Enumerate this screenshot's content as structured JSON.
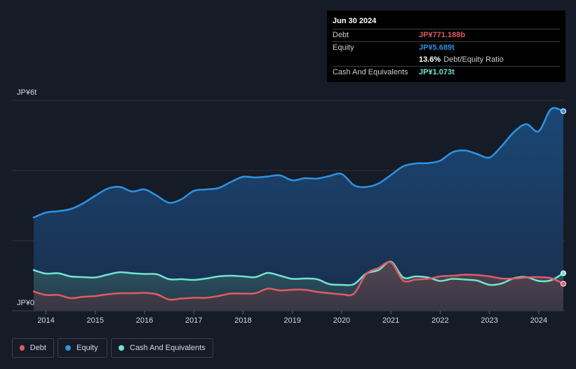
{
  "tooltip": {
    "date": "Jun 30 2024",
    "debt_label": "Debt",
    "debt_value": "JP¥771.188b",
    "equity_label": "Equity",
    "equity_value": "JP¥5.689t",
    "ratio_value": "13.6%",
    "ratio_label": "Debt/Equity Ratio",
    "cash_label": "Cash And Equivalents",
    "cash_value": "JP¥1.073t"
  },
  "legend": {
    "debt": "Debt",
    "equity": "Equity",
    "cash": "Cash And Equivalents"
  },
  "colors": {
    "debt": "#e05b63",
    "equity": "#2e93e0",
    "cash": "#6fe3d0",
    "background": "#151b27"
  },
  "chart_data": {
    "type": "area",
    "unit": "JP¥ trillions",
    "y_tick_labels": [
      "JP¥0",
      "JP¥6t"
    ],
    "ylim": [
      0,
      6
    ],
    "xlim": [
      2013.75,
      2024.5
    ],
    "x_tick_labels": [
      "2014",
      "2015",
      "2016",
      "2017",
      "2018",
      "2019",
      "2020",
      "2021",
      "2022",
      "2023",
      "2024"
    ],
    "grid": true,
    "legend_position": "bottom-left",
    "series": [
      {
        "name": "Equity",
        "x": [
          2013.75,
          2014.0,
          2014.25,
          2014.5,
          2014.75,
          2015.0,
          2015.25,
          2015.5,
          2015.75,
          2016.0,
          2016.25,
          2016.5,
          2016.75,
          2017.0,
          2017.25,
          2017.5,
          2017.75,
          2018.0,
          2018.25,
          2018.5,
          2018.75,
          2019.0,
          2019.25,
          2019.5,
          2019.75,
          2020.0,
          2020.25,
          2020.5,
          2020.75,
          2021.0,
          2021.25,
          2021.5,
          2021.75,
          2022.0,
          2022.25,
          2022.5,
          2022.75,
          2023.0,
          2023.25,
          2023.5,
          2023.75,
          2024.0,
          2024.25,
          2024.5
        ],
        "values": [
          2.66,
          2.8,
          2.84,
          2.9,
          3.06,
          3.28,
          3.48,
          3.53,
          3.4,
          3.46,
          3.28,
          3.08,
          3.18,
          3.42,
          3.46,
          3.5,
          3.67,
          3.82,
          3.8,
          3.83,
          3.86,
          3.72,
          3.78,
          3.77,
          3.84,
          3.9,
          3.58,
          3.53,
          3.63,
          3.87,
          4.12,
          4.2,
          4.21,
          4.28,
          4.52,
          4.57,
          4.47,
          4.37,
          4.7,
          5.1,
          5.32,
          5.12,
          5.75,
          5.69
        ]
      },
      {
        "name": "Cash And Equivalents",
        "x": [
          2013.75,
          2014.0,
          2014.25,
          2014.5,
          2014.75,
          2015.0,
          2015.25,
          2015.5,
          2015.75,
          2016.0,
          2016.25,
          2016.5,
          2016.75,
          2017.0,
          2017.25,
          2017.5,
          2017.75,
          2018.0,
          2018.25,
          2018.5,
          2018.75,
          2019.0,
          2019.25,
          2019.5,
          2019.75,
          2020.0,
          2020.25,
          2020.5,
          2020.75,
          2021.0,
          2021.25,
          2021.5,
          2021.75,
          2022.0,
          2022.25,
          2022.5,
          2022.75,
          2023.0,
          2023.25,
          2023.5,
          2023.75,
          2024.0,
          2024.25,
          2024.5
        ],
        "values": [
          1.16,
          1.06,
          1.07,
          0.98,
          0.96,
          0.95,
          1.03,
          1.1,
          1.07,
          1.05,
          1.04,
          0.9,
          0.9,
          0.88,
          0.92,
          0.98,
          1.0,
          0.98,
          0.96,
          1.08,
          1.0,
          0.91,
          0.92,
          0.9,
          0.76,
          0.74,
          0.76,
          1.06,
          1.16,
          1.4,
          0.95,
          0.98,
          0.95,
          0.85,
          0.91,
          0.89,
          0.86,
          0.74,
          0.78,
          0.93,
          0.96,
          0.85,
          0.87,
          1.07
        ]
      },
      {
        "name": "Debt",
        "x": [
          2013.75,
          2014.0,
          2014.25,
          2014.5,
          2014.75,
          2015.0,
          2015.25,
          2015.5,
          2015.75,
          2016.0,
          2016.25,
          2016.5,
          2016.75,
          2017.0,
          2017.25,
          2017.5,
          2017.75,
          2018.0,
          2018.25,
          2018.5,
          2018.75,
          2019.0,
          2019.25,
          2019.5,
          2019.75,
          2020.0,
          2020.25,
          2020.5,
          2020.75,
          2021.0,
          2021.25,
          2021.5,
          2021.75,
          2022.0,
          2022.25,
          2022.5,
          2022.75,
          2023.0,
          2023.25,
          2023.5,
          2023.75,
          2024.0,
          2024.25,
          2024.5
        ],
        "values": [
          0.55,
          0.45,
          0.45,
          0.36,
          0.4,
          0.42,
          0.47,
          0.5,
          0.5,
          0.51,
          0.47,
          0.32,
          0.35,
          0.37,
          0.37,
          0.42,
          0.49,
          0.49,
          0.5,
          0.63,
          0.58,
          0.6,
          0.6,
          0.54,
          0.5,
          0.47,
          0.49,
          1.05,
          1.22,
          1.38,
          0.86,
          0.89,
          0.91,
          0.98,
          1.0,
          1.03,
          1.02,
          0.98,
          0.92,
          0.92,
          0.95,
          0.96,
          0.93,
          0.77
        ]
      }
    ]
  }
}
